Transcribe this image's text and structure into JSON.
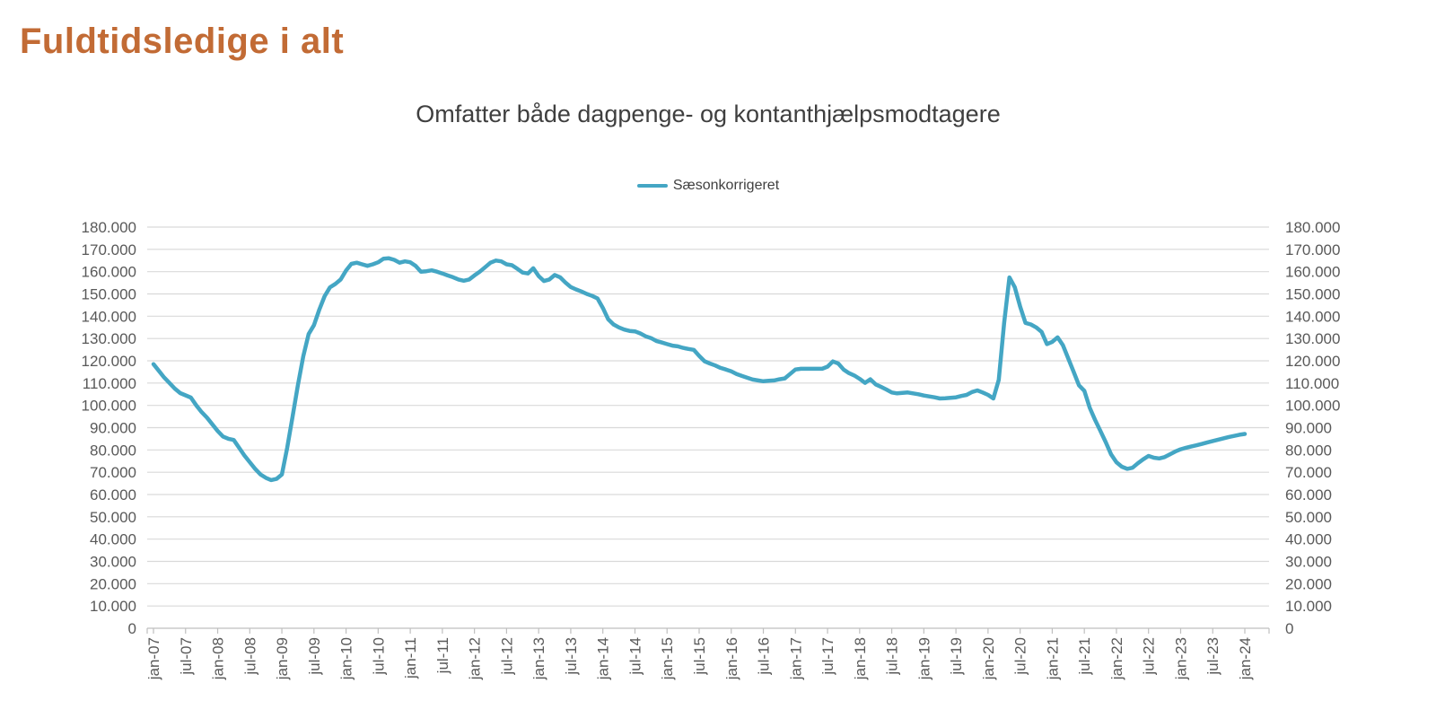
{
  "page": {
    "title": "Fuldtidsledige i alt"
  },
  "colors": {
    "title": "#C26B35",
    "subtitle": "#3F3F3F",
    "axis_labels": "#595959",
    "gridline": "#D9D9D9",
    "axis_line": "#BFBFBF",
    "series_line": "#44A6C4",
    "background": "#FFFFFF"
  },
  "chart_data": {
    "type": "line",
    "title": "Omfatter både dagpenge- og kontanthjælpsmodtagere",
    "legend_position": "top-center",
    "grid": "horizontal",
    "ylim": [
      0,
      180000
    ],
    "ytick_step": 10000,
    "ytick_format": "da-DK thousands (e.g. 180.000, 0)",
    "y_axis_sides": "both",
    "x_frequency": "monthly",
    "x_first": "jan-07",
    "x_last": "jan-24",
    "x_tick_every_months": 6,
    "x_tick_labels": [
      "jan-07",
      "jul-07",
      "jan-08",
      "jul-08",
      "jan-09",
      "jul-09",
      "jan-10",
      "jul-10",
      "jan-11",
      "jul-11",
      "jan-12",
      "jul-12",
      "jan-13",
      "jul-13",
      "jan-14",
      "jul-14",
      "jan-15",
      "jul-15",
      "jan-16",
      "jul-16",
      "jan-17",
      "jul-17",
      "jan-18",
      "jul-18",
      "jan-19",
      "jul-19",
      "jan-20",
      "jul-20",
      "jan-21",
      "jul-21",
      "jan-22",
      "jul-22",
      "jan-23",
      "jul-23",
      "jan-24"
    ],
    "series": [
      {
        "name": "Sæsonkorrigeret",
        "color": "#44A6C4",
        "values": [
          118500,
          115500,
          112500,
          110000,
          107500,
          105500,
          104500,
          103500,
          100000,
          97000,
          94500,
          91500,
          88500,
          86000,
          85000,
          84500,
          81000,
          77500,
          74500,
          71500,
          69000,
          67500,
          66500,
          67000,
          69000,
          81000,
          95000,
          109000,
          122000,
          132000,
          136000,
          143000,
          149000,
          153000,
          154500,
          156500,
          160500,
          163500,
          164000,
          163300,
          162600,
          163300,
          164200,
          165800,
          166000,
          165300,
          164000,
          164600,
          164200,
          162600,
          160000,
          160200,
          160600,
          160000,
          159200,
          158300,
          157500,
          156500,
          155900,
          156500,
          158300,
          160000,
          162000,
          164000,
          165000,
          164600,
          163300,
          162900,
          161300,
          159600,
          159200,
          161500,
          158000,
          155800,
          156500,
          158500,
          157500,
          155100,
          153100,
          152000,
          151100,
          150000,
          149100,
          148000,
          143700,
          138600,
          136300,
          135000,
          134000,
          133400,
          133200,
          132300,
          131000,
          130200,
          128900,
          128200,
          127500,
          126800,
          126500,
          125800,
          125300,
          124900,
          122200,
          119800,
          118800,
          117900,
          116800,
          116100,
          115300,
          114100,
          113200,
          112400,
          111600,
          111200,
          110800,
          111000,
          111200,
          111700,
          112100,
          114100,
          116100,
          116400,
          116400,
          116400,
          116400,
          116400,
          117400,
          119700,
          118800,
          116100,
          114500,
          113400,
          111900,
          110100,
          111700,
          109400,
          108300,
          107100,
          105800,
          105400,
          105600,
          105800,
          105400,
          105000,
          104400,
          104000,
          103600,
          103100,
          103200,
          103400,
          103600,
          104200,
          104700,
          106000,
          106700,
          105800,
          104700,
          103100,
          111400,
          136900,
          157400,
          153000,
          144400,
          137000,
          136300,
          135000,
          133000,
          127500,
          128500,
          130500,
          127000,
          121000,
          115000,
          109000,
          106500,
          99000,
          93500,
          88500,
          83500,
          78000,
          74500,
          72500,
          71500,
          72000,
          74000,
          75800,
          77300,
          76500,
          76200,
          76800,
          78000,
          79300,
          80300,
          81000,
          81600,
          82100,
          82700,
          83400,
          84000,
          84600,
          85200,
          85800,
          86300,
          86800,
          87200
        ]
      }
    ]
  }
}
